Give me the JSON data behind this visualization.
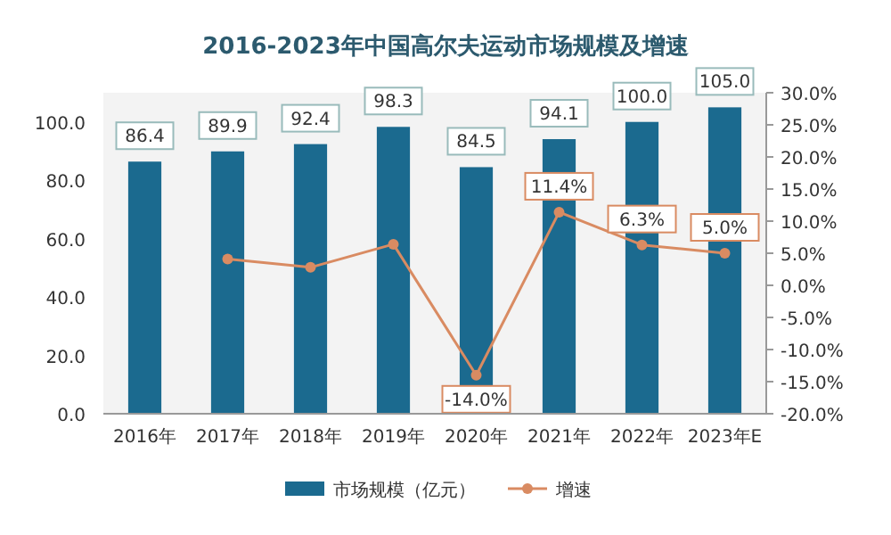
{
  "chart_data": {
    "type": "bar",
    "title": "2016-2023年中国高尔夫运动市场规模及增速",
    "categories": [
      "2016年",
      "2017年",
      "2018年",
      "2019年",
      "2020年",
      "2021年",
      "2022年",
      "2023年E"
    ],
    "series": [
      {
        "name": "市场规模（亿元）",
        "color": "#1b6a8f",
        "values": [
          86.4,
          89.9,
          92.4,
          98.3,
          84.5,
          94.1,
          100.0,
          105.0
        ],
        "value_labels": [
          "86.4",
          "89.9",
          "92.4",
          "98.3",
          "84.5",
          "94.1",
          "100.0",
          "105.0"
        ]
      },
      {
        "name": "增速",
        "type": "line",
        "axis": "y2",
        "color": "#d98b62",
        "marker": "circle",
        "values": [
          null,
          4.1,
          2.8,
          6.4,
          -14.0,
          11.4,
          6.3,
          5.0
        ],
        "value_labels": [
          null,
          null,
          null,
          null,
          "-14.0%",
          "11.4%",
          "6.3%",
          "5.0%"
        ]
      }
    ],
    "ylim": [
      0,
      110
    ],
    "yticks": [
      {
        "value": 0,
        "label": "0.0"
      },
      {
        "value": 20,
        "label": "20.0"
      },
      {
        "value": 40,
        "label": "40.0"
      },
      {
        "value": 60,
        "label": "60.0"
      },
      {
        "value": 80,
        "label": "80.0"
      },
      {
        "value": 100,
        "label": "100.0"
      }
    ],
    "y2lim": [
      -20,
      30
    ],
    "y2ticks": [
      {
        "value": -20,
        "label": "-20.0%"
      },
      {
        "value": -15,
        "label": "-15.0%"
      },
      {
        "value": -10,
        "label": "-10.0%"
      },
      {
        "value": -5,
        "label": "-5.0%"
      },
      {
        "value": 0,
        "label": "0.0%"
      },
      {
        "value": 5,
        "label": "5.0%"
      },
      {
        "value": 10,
        "label": "10.0%"
      },
      {
        "value": 15,
        "label": "15.0%"
      },
      {
        "value": 20,
        "label": "20.0%"
      },
      {
        "value": 25,
        "label": "25.0%"
      },
      {
        "value": 30,
        "label": "30.0%"
      }
    ],
    "legend": "bottom",
    "grid": false
  }
}
